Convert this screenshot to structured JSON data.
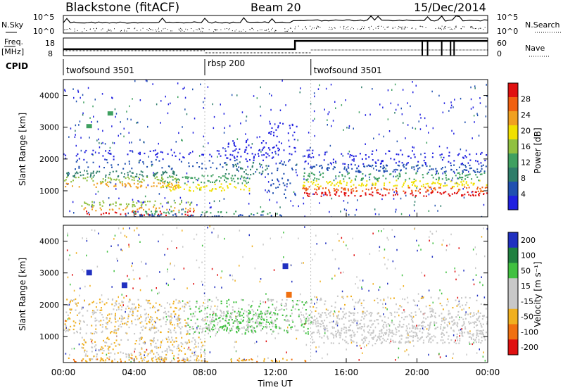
{
  "header": {
    "title": "Blackstone (fitACF)",
    "beam": "Beam 20",
    "date": "15/Dec/2014"
  },
  "noise_panel": {
    "left_label": "N.Sky",
    "right_label": "N.Search",
    "left_ticks": [
      "10^5",
      "10^0"
    ],
    "right_ticks": [
      "10^5",
      "10^0"
    ]
  },
  "freq_panel": {
    "left_label_1": "Freq.",
    "left_label_2": "[MHz]",
    "right_label": "Nave",
    "left_ticks": [
      "18",
      "8"
    ],
    "right_ticks": [
      "60",
      "0"
    ]
  },
  "cpid": {
    "label": "CPID",
    "segments": [
      {
        "name": "twofsound 3501",
        "start": 0,
        "end": 8
      },
      {
        "name": "rbsp 200",
        "start": 8,
        "end": 14
      },
      {
        "name": "twofsound 3501",
        "start": 14,
        "end": 24
      }
    ]
  },
  "power_panel": {
    "ylabel": "Slant Range [km]",
    "yticks": [
      "1000",
      "2000",
      "3000",
      "4000"
    ],
    "colorbar_label": "Power [dB]",
    "colorbar_ticks": [
      "4",
      "8",
      "12",
      "16",
      "20",
      "24",
      "28"
    ],
    "colors": [
      "#2020e0",
      "#2050b0",
      "#2e7d6a",
      "#3fa060",
      "#90c040",
      "#f0e000",
      "#f0a020",
      "#f06010",
      "#e01010"
    ]
  },
  "velocity_panel": {
    "ylabel": "Slant Range [km]",
    "yticks": [
      "1000",
      "2000",
      "3000",
      "4000"
    ],
    "colorbar_label": "Velocity [m s⁻¹]",
    "colorbar_ticks": [
      "200",
      "100",
      "50",
      "15",
      "-15",
      "-50",
      "-100",
      "-200"
    ],
    "colors": [
      "#2030c0",
      "#208040",
      "#40c040",
      "#c8c8c8",
      "#c8c8c8",
      "#f0b020",
      "#f07010",
      "#e01010"
    ]
  },
  "x_axis": {
    "xlabel": "Time UT",
    "ticks": [
      "00:00",
      "04:00",
      "08:00",
      "12:00",
      "16:00",
      "20:00",
      "00:00"
    ]
  },
  "chart_data": [
    {
      "type": "heatmap",
      "title": "Blackstone (fitACF)",
      "subtitle": "Beam 20, 15/Dec/2014",
      "quantity": "Power",
      "xlabel": "Time UT",
      "ylabel": "Slant Range [km]",
      "xlim_hours": [
        0,
        24
      ],
      "ylim_km": [
        180,
        4500
      ],
      "color_scale_dB": [
        0,
        30
      ],
      "echo_regions": [
        {
          "t_start": 0.0,
          "t_end": 6.5,
          "range_min": 1100,
          "range_max": 1600,
          "power_dB": 18
        },
        {
          "t_start": 1.0,
          "t_end": 7.0,
          "range_min": 300,
          "range_max": 700,
          "power_dB": 22
        },
        {
          "t_start": 5.5,
          "t_end": 10.5,
          "range_min": 1000,
          "range_max": 1500,
          "power_dB": 20
        },
        {
          "t_start": 9.0,
          "t_end": 11.5,
          "range_min": 1500,
          "range_max": 2500,
          "power_dB": 8
        },
        {
          "t_start": 13.5,
          "t_end": 24.0,
          "range_min": 800,
          "range_max": 1400,
          "power_dB": 22
        },
        {
          "t_start": 13.5,
          "t_end": 24.0,
          "range_min": 1400,
          "range_max": 2200,
          "power_dB": 8
        }
      ]
    },
    {
      "type": "heatmap",
      "title": "Blackstone (fitACF)",
      "quantity": "Velocity",
      "xlabel": "Time UT",
      "ylabel": "Slant Range [km]",
      "xlim_hours": [
        0,
        24
      ],
      "ylim_km": [
        180,
        4500
      ],
      "color_scale_ms": [
        -200,
        200
      ],
      "echo_regions": [
        {
          "t_start": 0.0,
          "t_end": 14.0,
          "range_min": 1100,
          "range_max": 2200,
          "velocity": -10
        },
        {
          "t_start": 1.0,
          "t_end": 8.0,
          "range_min": 300,
          "range_max": 1000,
          "velocity": -40
        },
        {
          "t_start": 8.0,
          "t_end": 12.0,
          "range_min": 1200,
          "range_max": 1800,
          "velocity": 40
        },
        {
          "t_start": 14.0,
          "t_end": 24.0,
          "range_min": 800,
          "range_max": 1800,
          "velocity": 0
        }
      ]
    }
  ]
}
